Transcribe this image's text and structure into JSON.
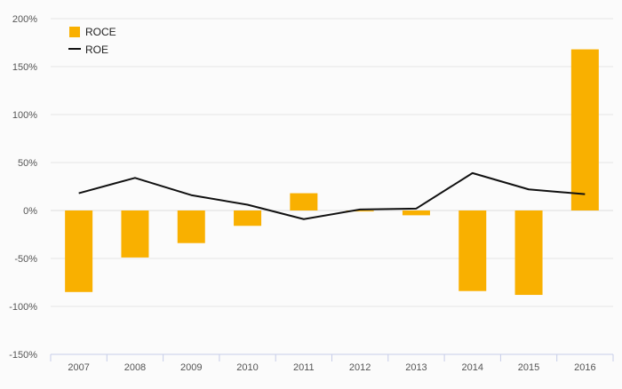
{
  "chart_data": {
    "type": "bar",
    "title": "",
    "xlabel": "",
    "ylabel": "",
    "categories": [
      "2007",
      "2008",
      "2009",
      "2010",
      "2011",
      "2012",
      "2013",
      "2014",
      "2015",
      "2016"
    ],
    "y_unit": "%",
    "ylim": [
      -150,
      200
    ],
    "yticks": [
      -150,
      -100,
      -50,
      0,
      50,
      100,
      150,
      200
    ],
    "ytick_labels": [
      "-150%",
      "-100%",
      "-50%",
      "0%",
      "50%",
      "100%",
      "150%",
      "200%"
    ],
    "grid": true,
    "legend_position": "top-left",
    "series": [
      {
        "name": "ROCE",
        "type": "bar",
        "color": "#f9b000",
        "values": [
          -85,
          -49,
          -34,
          -16,
          18,
          -1,
          -5,
          -84,
          -88,
          168
        ]
      },
      {
        "name": "ROE",
        "type": "line",
        "color": "#111111",
        "values": [
          18,
          34,
          16,
          6,
          -9,
          1,
          2,
          39,
          22,
          17
        ]
      }
    ]
  }
}
